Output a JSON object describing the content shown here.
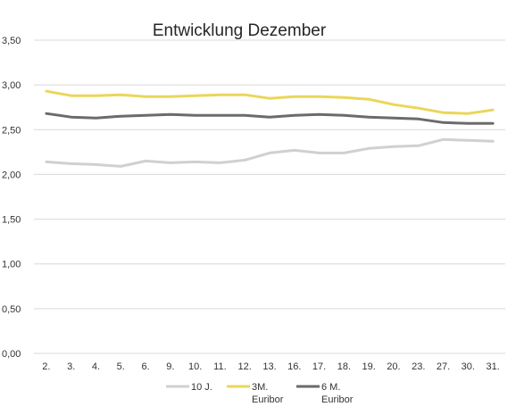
{
  "chart_data": {
    "type": "line",
    "title": "Entwicklung Dezember",
    "xlabel": "",
    "ylabel": "",
    "ylim": [
      0,
      3.5
    ],
    "yticks": [
      "0,00",
      "0,50",
      "1,00",
      "1,50",
      "2,00",
      "2,50",
      "3,00",
      "3,50"
    ],
    "ytick_values": [
      0,
      0.5,
      1,
      1.5,
      2,
      2.5,
      3,
      3.5
    ],
    "grid": true,
    "legend_position": "bottom",
    "categories": [
      "2.",
      "3.",
      "4.",
      "5.",
      "6.",
      "9.",
      "10.",
      "11.",
      "12.",
      "13.",
      "16.",
      "17.",
      "18.",
      "19.",
      "20.",
      "23.",
      "27.",
      "30.",
      "31."
    ],
    "series": [
      {
        "name": "10 J.",
        "color": "#d0d0d0",
        "values": [
          2.14,
          2.12,
          2.11,
          2.09,
          2.15,
          2.13,
          2.14,
          2.13,
          2.16,
          2.24,
          2.27,
          2.24,
          2.24,
          2.29,
          2.31,
          2.32,
          2.39,
          2.38,
          2.37
        ]
      },
      {
        "name": "3M.\nEuribor",
        "color": "#ead65a",
        "values": [
          2.93,
          2.88,
          2.88,
          2.89,
          2.87,
          2.87,
          2.88,
          2.89,
          2.89,
          2.85,
          2.87,
          2.87,
          2.86,
          2.84,
          2.78,
          2.74,
          2.69,
          2.68,
          2.72
        ]
      },
      {
        "name": "6 M.\nEuribor",
        "color": "#6b6b6b",
        "values": [
          2.68,
          2.64,
          2.63,
          2.65,
          2.66,
          2.67,
          2.66,
          2.66,
          2.66,
          2.64,
          2.66,
          2.67,
          2.66,
          2.64,
          2.63,
          2.62,
          2.58,
          2.57,
          2.57
        ]
      }
    ]
  }
}
